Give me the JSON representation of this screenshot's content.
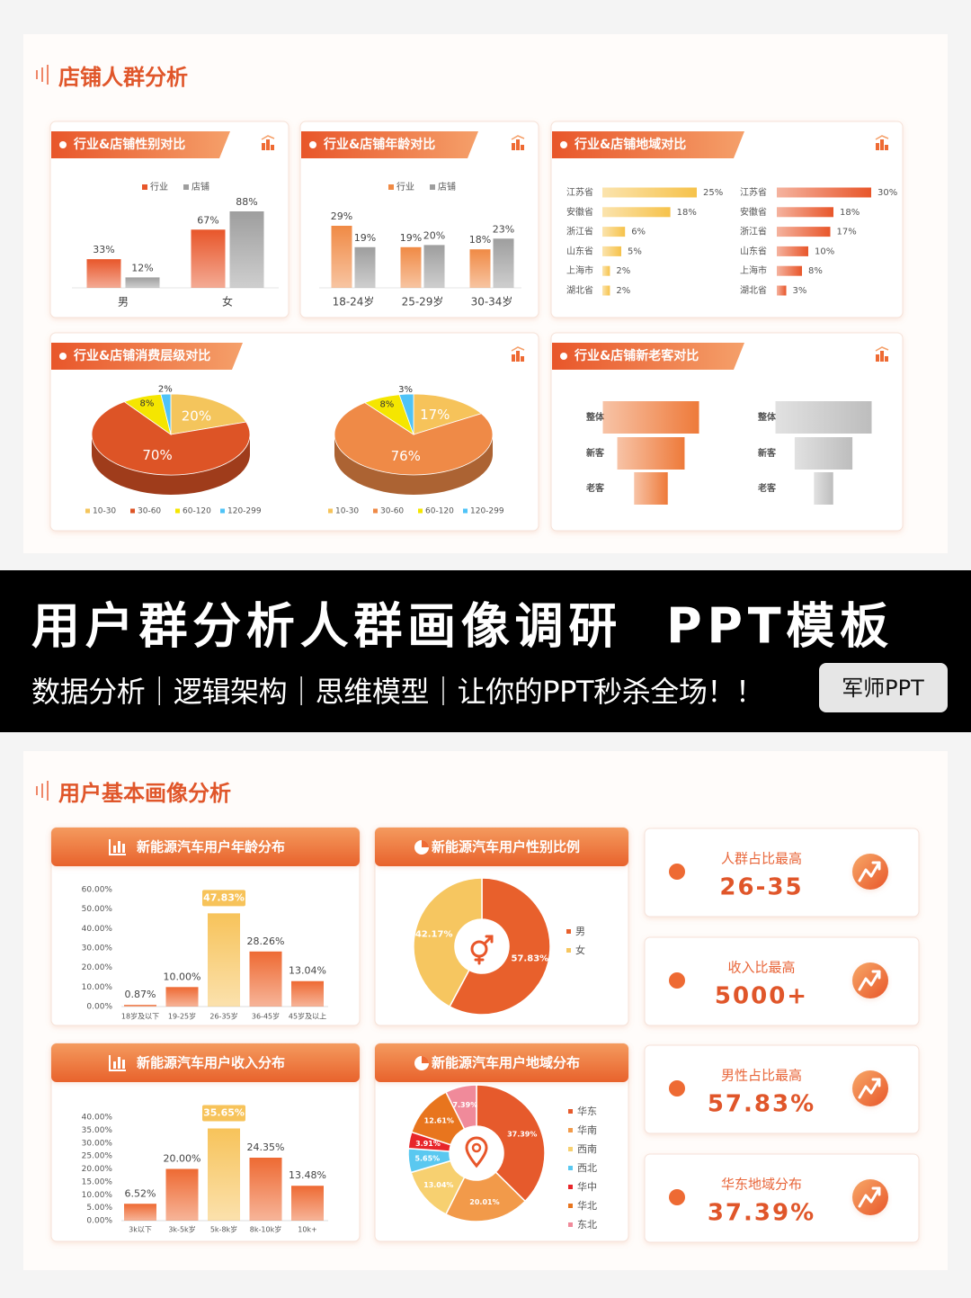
{
  "sections": [
    {
      "title": "店铺人群分析"
    },
    {
      "title": "用户基本画像分析"
    }
  ],
  "banner": {
    "title": "用户群分析人群画像调研  PPT模板",
    "subtitle": "数据分析｜逻辑架构｜思维模型｜让你的PPT秒杀全场！！",
    "badge": "军师PPT"
  },
  "cards": [
    {
      "label": "人群占比最高",
      "value": "26-35"
    },
    {
      "label": "收入比最高",
      "value": "5000+"
    },
    {
      "label": "男性占比最高",
      "value": "57.83%"
    },
    {
      "label": "华东地域分布",
      "value": "37.39%"
    }
  ],
  "chart_data": [
    {
      "type": "bar",
      "title": "行业&店铺性别对比",
      "categories": [
        "男",
        "女"
      ],
      "series": [
        {
          "name": "行业",
          "color": "#e8562a",
          "values": [
            33,
            67
          ],
          "value_labels": [
            "33%",
            "67%"
          ]
        },
        {
          "name": "店铺",
          "color": "#9e9e9e",
          "values": [
            12,
            88
          ],
          "value_labels": [
            "12%",
            "88%"
          ]
        }
      ]
    },
    {
      "type": "bar",
      "title": "行业&店铺年龄对比",
      "categories": [
        "18-24岁",
        "25-29岁",
        "30-34岁"
      ],
      "series": [
        {
          "name": "行业",
          "color": "#f08a45",
          "values": [
            29,
            19,
            18
          ],
          "value_labels": [
            "29%",
            "19%",
            "18%"
          ]
        },
        {
          "name": "店铺",
          "color": "#9e9e9e",
          "values": [
            19,
            20,
            23
          ],
          "value_labels": [
            "19%",
            "20%",
            "23%"
          ]
        }
      ]
    },
    {
      "type": "hbar",
      "title": "行业&店铺地域对比",
      "categories": [
        "江苏省",
        "安徽省",
        "浙江省",
        "山东省",
        "上海市",
        "湖北省"
      ],
      "series": [
        {
          "color": "#f6c24a",
          "values": [
            25,
            18,
            6,
            5,
            2,
            2
          ],
          "value_labels": [
            "25%",
            "18%",
            "6%",
            "5%",
            "2%",
            "2%"
          ]
        },
        {
          "color": "#e8562a",
          "values": [
            30,
            18,
            17,
            10,
            8,
            3
          ],
          "value_labels": [
            "30%",
            "18%",
            "17%",
            "10%",
            "8%",
            "3%"
          ]
        }
      ]
    },
    {
      "type": "pie",
      "title": "行业&店铺消费层级对比",
      "categories": [
        "10-30",
        "30-60",
        "60-120",
        "120-299"
      ],
      "series": [
        {
          "colors": [
            "#f4c55c",
            "#dd5426",
            "#f5e600",
            "#4fc3f7"
          ],
          "values": [
            20,
            70,
            8,
            2
          ],
          "value_labels": [
            "20%",
            "70%",
            "8%",
            "2%"
          ]
        },
        {
          "colors": [
            "#f6c35a",
            "#ef8a47",
            "#f5e600",
            "#4fc3f7"
          ],
          "values": [
            17,
            76,
            8,
            3
          ],
          "value_labels": [
            "17%",
            "76%",
            "8%",
            "3%"
          ]
        }
      ]
    },
    {
      "type": "funnel",
      "title": "行业&店铺新老客对比",
      "categories": [
        "整体",
        "新客",
        "老客"
      ],
      "series": [
        {
          "color": "#ee7a3a",
          "values": [
            100,
            70,
            35
          ]
        },
        {
          "color": "#bdbdbd",
          "values": [
            100,
            60,
            20
          ]
        }
      ]
    },
    {
      "type": "bar",
      "title": "新能源汽车用户年龄分布",
      "categories": [
        "18岁及以下",
        "19-25岁",
        "26-35岁",
        "36-45岁",
        "45岁及以上"
      ],
      "values": [
        0.87,
        10,
        47.83,
        28.26,
        13.04
      ],
      "value_labels": [
        "0.87%",
        "10.00%",
        "47.83%",
        "28.26%",
        "13.04%"
      ],
      "colors": [
        "#ee6a33",
        "#ee6a33",
        "#f7c35a",
        "#ee6a33",
        "#ee6a33"
      ],
      "ylim": [
        0,
        60
      ],
      "yticks": [
        {
          "value": 0,
          "label": "0.00%"
        },
        {
          "value": 10,
          "label": "10.00%"
        },
        {
          "value": 20,
          "label": "20.00%"
        },
        {
          "value": 30,
          "label": "30.00%"
        },
        {
          "value": 40,
          "label": "40.00%"
        },
        {
          "value": 50,
          "label": "50.00%"
        },
        {
          "value": 60,
          "label": "60.00%"
        }
      ]
    },
    {
      "type": "donut",
      "title": "新能源汽车用户性别比例",
      "categories": [
        "男",
        "女"
      ],
      "values": [
        57.83,
        42.17
      ],
      "value_labels": [
        "57.83%",
        "42.17%"
      ],
      "colors": [
        "#e8602c",
        "#f6c660"
      ]
    },
    {
      "type": "bar",
      "title": "新能源汽车用户收入分布",
      "categories": [
        "3k以下",
        "3k-5k岁",
        "5k-8k岁",
        "8k-10k岁",
        "10k+"
      ],
      "values": [
        6.52,
        20,
        35.65,
        24.35,
        13.48
      ],
      "value_labels": [
        "6.52%",
        "20.00%",
        "35.65%",
        "24.35%",
        "13.48%"
      ],
      "colors": [
        "#ee6a33",
        "#ee6a33",
        "#f7c35a",
        "#ee6a33",
        "#ee6a33"
      ],
      "ylim": [
        0,
        40
      ],
      "yticks": [
        {
          "value": 0,
          "label": "0.00%"
        },
        {
          "value": 5,
          "label": "5.00%"
        },
        {
          "value": 10,
          "label": "10.00%"
        },
        {
          "value": 15,
          "label": "15.00%"
        },
        {
          "value": 20,
          "label": "20.00%"
        },
        {
          "value": 25,
          "label": "25.00%"
        },
        {
          "value": 30,
          "label": "30.00%"
        },
        {
          "value": 35,
          "label": "35.00%"
        },
        {
          "value": 40,
          "label": "40.00%"
        }
      ]
    },
    {
      "type": "donut",
      "title": "新能源汽车用户地域分布",
      "categories": [
        "华东",
        "华南",
        "西南",
        "西北",
        "华中",
        "华北",
        "东北"
      ],
      "values": [
        37.39,
        20.01,
        13.04,
        5.65,
        3.91,
        12.61,
        7.39
      ],
      "value_labels": [
        "37.39%",
        "20.01%",
        "13.04%",
        "5.65%",
        "3.91%",
        "12.61%",
        "7.39%"
      ],
      "colors": [
        "#e65a2c",
        "#f29a4a",
        "#f7d070",
        "#5ac8f0",
        "#e8262a",
        "#e8751e",
        "#f08a9a"
      ]
    }
  ]
}
